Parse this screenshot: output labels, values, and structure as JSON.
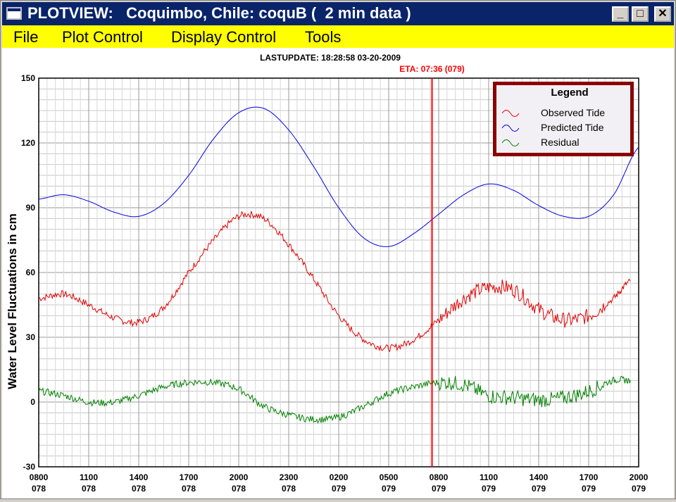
{
  "window": {
    "title": "PLOTVIEW:   Coquimbo, Chile: coquB (  2 min data )",
    "min_label": "_",
    "max_label": "□",
    "close_label": "✕"
  },
  "menu": {
    "items": [
      "File",
      "Plot Control",
      "Display Control",
      "Tools"
    ]
  },
  "colors": {
    "observed": "#e00000",
    "predicted": "#0000e0",
    "residual": "#008000",
    "eta_line": "#ff0000",
    "legend_border": "#8b0000"
  },
  "chart_data": {
    "type": "line",
    "lastupdate": "LASTUPDATE: 18:28:58  03-20-2009",
    "eta": "ETA: 07:36 (079)",
    "eta_x_hours": 23.6,
    "ylabel": "Water Level Fluctuations in cm",
    "ylim": [
      -30,
      150
    ],
    "yticks": [
      150,
      120,
      90,
      60,
      30,
      0,
      -30
    ],
    "xlim_hours": [
      0,
      36
    ],
    "xticks": [
      {
        "hours": 0,
        "time": "0800",
        "day": "078"
      },
      {
        "hours": 3,
        "time": "1100",
        "day": "078"
      },
      {
        "hours": 6,
        "time": "1400",
        "day": "078"
      },
      {
        "hours": 9,
        "time": "1700",
        "day": "078"
      },
      {
        "hours": 12,
        "time": "2000",
        "day": "078"
      },
      {
        "hours": 15,
        "time": "2300",
        "day": "078"
      },
      {
        "hours": 18,
        "time": "0200",
        "day": "079"
      },
      {
        "hours": 21,
        "time": "0500",
        "day": "079"
      },
      {
        "hours": 24,
        "time": "0800",
        "day": "079"
      },
      {
        "hours": 27,
        "time": "1100",
        "day": "079"
      },
      {
        "hours": 30,
        "time": "1400",
        "day": "079"
      },
      {
        "hours": 33,
        "time": "1700",
        "day": "079"
      },
      {
        "hours": 36,
        "time": "2000",
        "day": "079"
      }
    ],
    "grid": true,
    "legend": {
      "title": "Legend",
      "placement": "top-right",
      "entries": [
        "Observed Tide",
        "Predicted Tide",
        "Residual"
      ]
    },
    "series": [
      {
        "name": "Predicted Tide",
        "x": [
          0,
          1.5,
          3,
          4.5,
          6,
          7.5,
          9,
          10.5,
          12,
          13.5,
          15,
          16.5,
          18,
          19.5,
          21,
          22.5,
          24,
          25.5,
          27,
          28.5,
          30,
          31.5,
          33,
          34.5,
          36
        ],
        "y": [
          94,
          96,
          93,
          88,
          86,
          92,
          105,
          122,
          134,
          136,
          126,
          109,
          90,
          76,
          72,
          78,
          87,
          96,
          101,
          98,
          91,
          86,
          86,
          96,
          118
        ]
      },
      {
        "name": "Observed Tide",
        "x": [
          0,
          1.5,
          3,
          4.5,
          6,
          7.5,
          9,
          10.5,
          12,
          13.5,
          15,
          16.5,
          18,
          19.5,
          21,
          22.5,
          24,
          25.5,
          27,
          28.5,
          30,
          31.5,
          33,
          34.5,
          35.5
        ],
        "y": [
          48,
          50,
          45,
          39,
          37,
          44,
          60,
          75,
          86,
          85,
          73,
          57,
          40,
          29,
          25,
          29,
          38,
          48,
          53,
          52,
          43,
          38,
          40,
          48,
          56
        ]
      },
      {
        "name": "Residual",
        "x": [
          0,
          1.5,
          3,
          4.5,
          6,
          7.5,
          9,
          10.5,
          12,
          13.5,
          15,
          16.5,
          18,
          19.5,
          21,
          22.5,
          24,
          25.5,
          27,
          28.5,
          30,
          31.5,
          33,
          34.5,
          35.5
        ],
        "y": [
          5,
          3,
          0,
          0,
          3,
          7,
          9,
          9,
          6,
          -2,
          -6,
          -8,
          -7,
          -2,
          4,
          7,
          9,
          8,
          3,
          2,
          1,
          2,
          5,
          10,
          10
        ]
      }
    ]
  }
}
